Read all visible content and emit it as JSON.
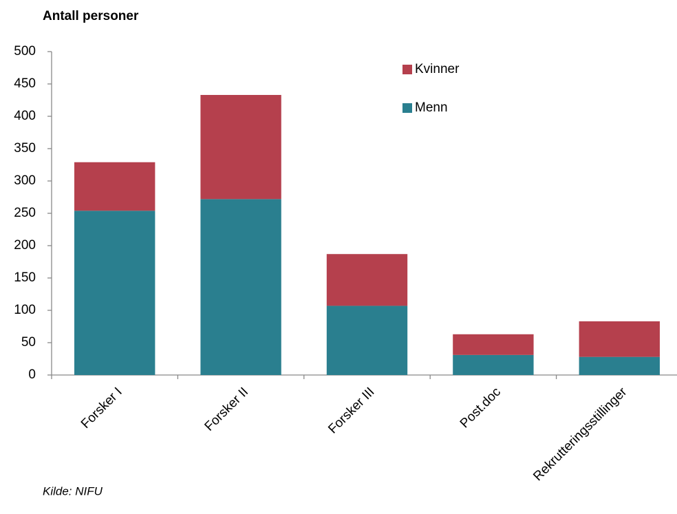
{
  "chart_data": {
    "type": "bar",
    "stacked": true,
    "title": "Antall personer",
    "source": "Kilde: NIFU",
    "categories": [
      "Forsker I",
      "Forsker II",
      "Forsker III",
      "Post.doc",
      "Rekrutteringsstillinger"
    ],
    "series": [
      {
        "name": "Menn",
        "color": "#2a7f8f",
        "values": [
          254,
          272,
          107,
          31,
          28
        ]
      },
      {
        "name": "Kvinner",
        "color": "#b5404d",
        "values": [
          75,
          161,
          80,
          32,
          55
        ]
      }
    ],
    "ylim": [
      0,
      500
    ],
    "yticks": [
      0,
      50,
      100,
      150,
      200,
      250,
      300,
      350,
      400,
      450,
      500
    ],
    "grid": false
  }
}
